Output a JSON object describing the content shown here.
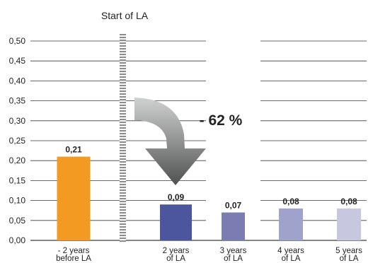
{
  "chart_data": {
    "type": "bar",
    "title": "",
    "xlabel": "",
    "ylabel": "",
    "ylim": [
      0,
      0.5
    ],
    "yticks": [
      "0,00",
      "0,05",
      "0,10",
      "0,15",
      "0,20",
      "0,25",
      "0,30",
      "0,35",
      "0,40",
      "0,45",
      "0,50"
    ],
    "grid": true,
    "categories": [
      [
        "- 2 years",
        "before LA"
      ],
      [
        "2 years",
        "of LA"
      ],
      [
        "3 years",
        "of LA"
      ],
      [
        "4 years",
        "of LA"
      ],
      [
        "5 years",
        "of LA"
      ]
    ],
    "values": [
      0.21,
      0.09,
      0.07,
      0.08,
      0.08
    ],
    "value_labels": [
      "0,21",
      "0,09",
      "0,07",
      "0,08",
      "0,08"
    ],
    "colors": [
      "#F39A22",
      "#4B569C",
      "#7B7DB2",
      "#9FA2CA",
      "#C7C8E0"
    ],
    "annotations": {
      "marker_label": "Start of LA",
      "change_label": "- 62 %"
    }
  }
}
